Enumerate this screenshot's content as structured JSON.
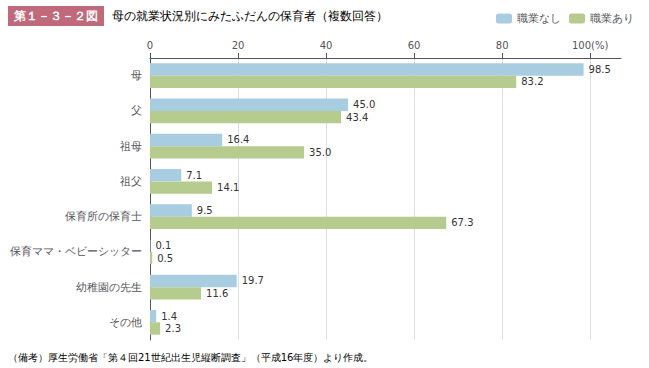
{
  "chart_data": {
    "type": "bar",
    "orientation": "horizontal",
    "title": "母の就業状況別にみたふだんの保育者（複数回答）",
    "annotations": [
      "第１－３－２図",
      "（備考）厚生労働省「第４回21世紀出生児縦断調査」（平成16年度）より作成。"
    ],
    "categories": [
      "母",
      "父",
      "祖母",
      "祖父",
      "保育所の保育士",
      "保育ママ・ベビーシッター",
      "幼稚園の先生",
      "その他"
    ],
    "series": [
      {
        "name": "職業なし",
        "color": "#a8cce0",
        "values": [
          98.5,
          45.0,
          16.4,
          7.1,
          9.5,
          0.1,
          19.7,
          1.4
        ],
        "value_labels": [
          "98.5",
          "45.0",
          "16.4",
          "7.1",
          "9.5",
          "0.1",
          "19.7",
          "1.4"
        ]
      },
      {
        "name": "職業あり",
        "color": "#b5cc8e",
        "values": [
          83.2,
          43.4,
          35.0,
          14.1,
          67.3,
          0.5,
          11.6,
          2.3
        ],
        "value_labels": [
          "83.2",
          "43.4",
          "35.0",
          "14.1",
          "67.3",
          "0.5",
          "11.6",
          "2.3"
        ]
      }
    ],
    "xlim": [
      0,
      107
    ],
    "xticks": [
      0,
      20,
      40,
      60,
      80,
      {
        "value": 100,
        "label": "100(%)"
      }
    ],
    "grid": true,
    "legend": "upper right",
    "data_labels": true
  }
}
